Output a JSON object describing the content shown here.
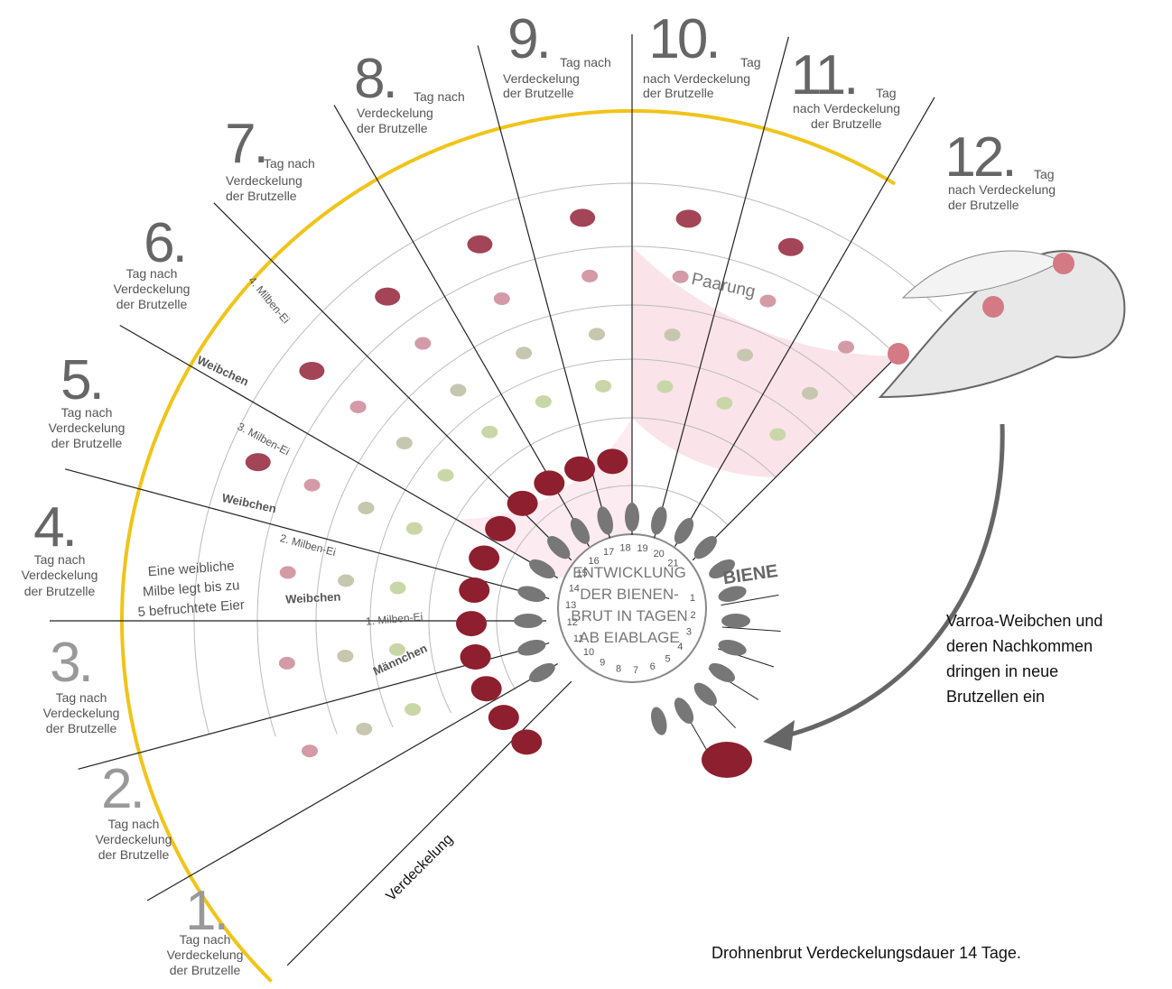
{
  "days": [
    {
      "number": "1.",
      "lines": [
        "Tag nach",
        "Verdeckelung",
        "der Brutzelle"
      ]
    },
    {
      "number": "2.",
      "lines": [
        "Tag nach",
        "Verdeckelung",
        "der Brutzelle"
      ]
    },
    {
      "number": "3.",
      "lines": [
        "Tag nach",
        "Verdeckelung",
        "der Brutzelle"
      ]
    },
    {
      "number": "4.",
      "lines": [
        "Tag nach",
        "Verdeckelung",
        "der Brutzelle"
      ]
    },
    {
      "number": "5.",
      "lines": [
        "Tag nach",
        "Verdeckelung",
        "der Brutzelle"
      ]
    },
    {
      "number": "6.",
      "lines": [
        "Tag nach",
        "Verdeckelung",
        "der Brutzelle"
      ]
    },
    {
      "number": "7.",
      "lines": [
        "Tag nach",
        "Verdeckelung",
        "der Brutzelle"
      ]
    },
    {
      "number": "8.",
      "lines": [
        "Tag nach",
        "Verdeckelung",
        "der Brutzelle"
      ]
    },
    {
      "number": "9.",
      "lines": [
        "Tag nach",
        "Verdeckelung",
        "der Brutzelle"
      ]
    },
    {
      "number": "10.",
      "lines": [
        "Tag",
        "nach Verdeckelung",
        "der Brutzelle"
      ]
    },
    {
      "number": "11.",
      "lines": [
        "Tag",
        "nach Verdeckelung",
        "der Brutzelle"
      ]
    },
    {
      "number": "12.",
      "lines": [
        "Tag",
        "nach Verdeckelung",
        "der Brutzelle"
      ]
    }
  ],
  "inner_days": [
    "1",
    "2",
    "3",
    "4",
    "5",
    "6",
    "7",
    "8",
    "9",
    "10",
    "11",
    "12",
    "13",
    "14",
    "15",
    "16",
    "17",
    "18",
    "19",
    "20",
    "21"
  ],
  "center_text": [
    "ENTWICKLUNG",
    "DER BIENEN-",
    "BRUT IN TAGEN",
    "AB EIABLAGE"
  ],
  "bee_label": "BIENE",
  "ring_labels": [
    "4. Milben-Ei",
    "Weibchen",
    "3. Milben-Ei",
    "Weibchen",
    "2. Milben-Ei",
    "Weibchen",
    "1. Milben-Ei",
    "Männchen"
  ],
  "egg_note": [
    "Eine weibliche",
    "Milbe legt bis zu",
    "5 befruchtete Eier"
  ],
  "mating": "Paarung",
  "capping": "Verdeckelung",
  "annotation": [
    "Varroa-Weibchen und",
    "deren Nachkommen",
    "dringen in neue",
    "Brutzellen ein"
  ],
  "footnote": "Drohnenbrut Verdeckelungsdauer 14 Tage."
}
